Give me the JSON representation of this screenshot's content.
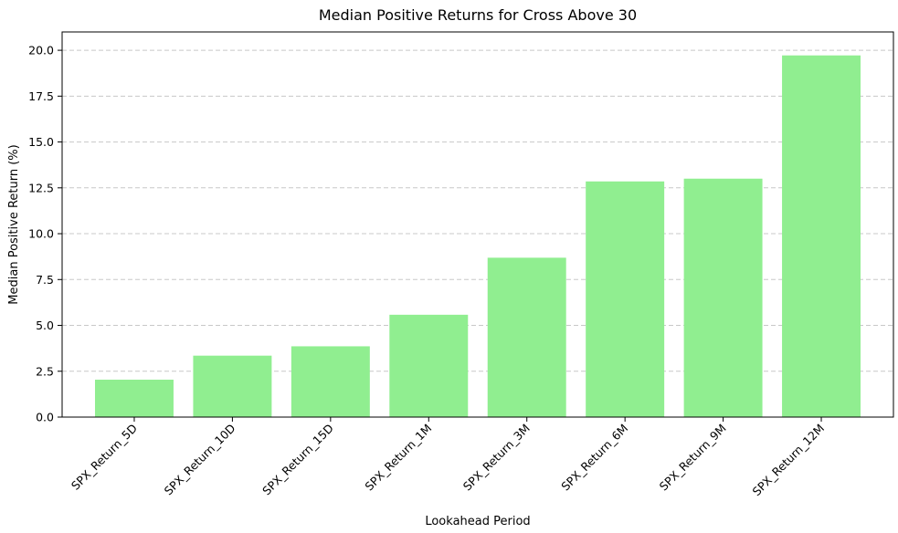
{
  "chart_data": {
    "type": "bar",
    "title": "Median Positive Returns for Cross Above 30",
    "xlabel": "Lookahead Period",
    "ylabel": "Median Positive Return (%)",
    "categories": [
      "SPX_Return_5D",
      "SPX_Return_10D",
      "SPX_Return_15D",
      "SPX_Return_1M",
      "SPX_Return_3M",
      "SPX_Return_6M",
      "SPX_Return_9M",
      "SPX_Return_12M"
    ],
    "values": [
      2.04,
      3.35,
      3.86,
      5.58,
      8.69,
      12.85,
      13.0,
      19.72
    ],
    "ylim": [
      0,
      21.0
    ],
    "yticks": [
      0.0,
      2.5,
      5.0,
      7.5,
      10.0,
      12.5,
      15.0,
      17.5,
      20.0
    ],
    "ytick_labels": [
      "0.0",
      "2.5",
      "5.0",
      "7.5",
      "10.0",
      "12.5",
      "15.0",
      "17.5",
      "20.0"
    ],
    "grid": "y-dashed",
    "bar_color": "#90ee90"
  }
}
